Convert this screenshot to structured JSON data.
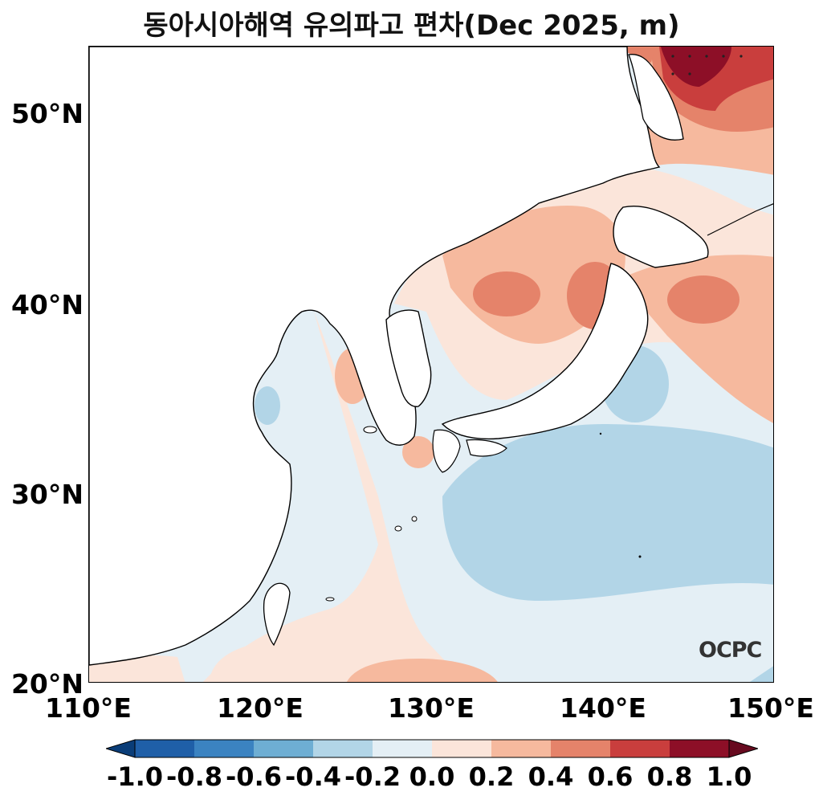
{
  "title": "동아시아해역 유의파고 편차(Dec 2025, m)",
  "logo": "OCPC",
  "lat_labels": [
    "50°N",
    "40°N",
    "30°N",
    "20°N"
  ],
  "lon_labels": [
    "110°E",
    "120°E",
    "130°E",
    "140°E",
    "150°E"
  ],
  "map_extent": {
    "lon": [
      110,
      150
    ],
    "lat": [
      20,
      53.5
    ]
  },
  "colorbar": {
    "levels": [
      "-1.0",
      "-0.8",
      "-0.6",
      "-0.4",
      "-0.2",
      "0.0",
      "0.2",
      "0.4",
      "0.6",
      "0.8",
      "1.0"
    ],
    "colors": [
      "#0a3d78",
      "#1f5fa8",
      "#3b83c1",
      "#6eaed3",
      "#b2d5e7",
      "#e4eff5",
      "#fbe5da",
      "#f6b99e",
      "#e5836a",
      "#c93e3d",
      "#8d0f27",
      "#670a1f"
    ],
    "extend": "both"
  },
  "colors": {
    "land": "#ffffff",
    "coastline": "#000000",
    "anomaly_neg_0_2": "#e4eff5",
    "anomaly_neg_0_4": "#b2d5e7",
    "anomaly_pos_0_2": "#fbe5da",
    "anomaly_pos_0_4": "#f6b99e",
    "anomaly_pos_0_6": "#e5836a",
    "anomaly_pos_0_8": "#c93e3d",
    "anomaly_pos_1_0": "#8d0f27"
  }
}
